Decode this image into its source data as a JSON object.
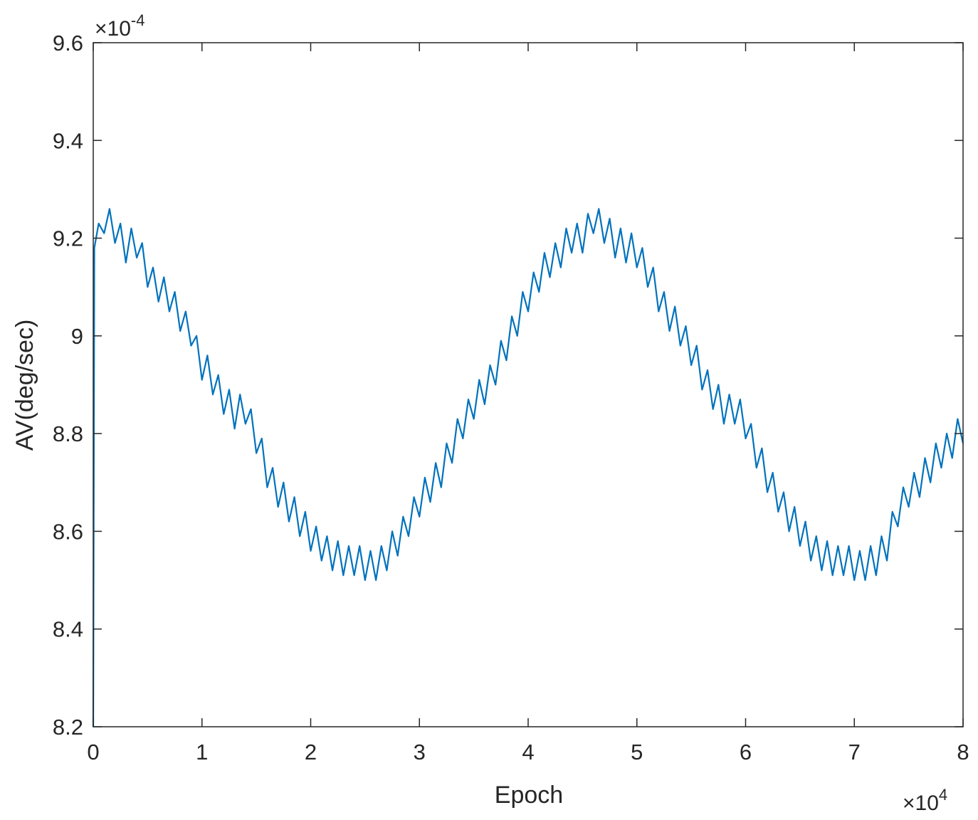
{
  "chart_data": {
    "type": "line",
    "xlabel": "Epoch",
    "ylabel": "AV(deg/sec)",
    "x_multiplier": {
      "base": "×10",
      "exponent": "4"
    },
    "y_multiplier": {
      "base": "×10",
      "exponent": "-4"
    },
    "xlim": [
      0,
      8
    ],
    "ylim": [
      8.2,
      9.6
    ],
    "xticks": [
      0,
      1,
      2,
      3,
      4,
      5,
      6,
      7,
      8
    ],
    "yticks": [
      8.2,
      8.4,
      8.6,
      8.8,
      9,
      9.2,
      9.4,
      9.6
    ],
    "grid": false,
    "box": true,
    "x": [
      0,
      0.01,
      0.05,
      0.1,
      0.15,
      0.2,
      0.25,
      0.3,
      0.35,
      0.4,
      0.45,
      0.5,
      0.55,
      0.6,
      0.65,
      0.7,
      0.75,
      0.8,
      0.85,
      0.9,
      0.95,
      1.0,
      1.05,
      1.1,
      1.15,
      1.2,
      1.25,
      1.3,
      1.35,
      1.4,
      1.45,
      1.5,
      1.55,
      1.6,
      1.65,
      1.7,
      1.75,
      1.8,
      1.85,
      1.9,
      1.95,
      2.0,
      2.05,
      2.1,
      2.15,
      2.2,
      2.25,
      2.3,
      2.35,
      2.4,
      2.45,
      2.5,
      2.55,
      2.6,
      2.65,
      2.7,
      2.75,
      2.8,
      2.85,
      2.9,
      2.95,
      3.0,
      3.05,
      3.1,
      3.15,
      3.2,
      3.25,
      3.3,
      3.35,
      3.4,
      3.45,
      3.5,
      3.55,
      3.6,
      3.65,
      3.7,
      3.75,
      3.8,
      3.85,
      3.9,
      3.95,
      4.0,
      4.05,
      4.1,
      4.15,
      4.2,
      4.25,
      4.3,
      4.35,
      4.4,
      4.45,
      4.5,
      4.55,
      4.6,
      4.65,
      4.7,
      4.75,
      4.8,
      4.85,
      4.9,
      4.95,
      5.0,
      5.05,
      5.1,
      5.15,
      5.2,
      5.25,
      5.3,
      5.35,
      5.4,
      5.45,
      5.5,
      5.55,
      5.6,
      5.65,
      5.7,
      5.75,
      5.8,
      5.85,
      5.9,
      5.95,
      6.0,
      6.05,
      6.1,
      6.15,
      6.2,
      6.25,
      6.3,
      6.35,
      6.4,
      6.45,
      6.5,
      6.55,
      6.6,
      6.65,
      6.7,
      6.75,
      6.8,
      6.85,
      6.9,
      6.95,
      7.0,
      7.05,
      7.1,
      7.15,
      7.2,
      7.25,
      7.3,
      7.35,
      7.4,
      7.45,
      7.5,
      7.55,
      7.6,
      7.65,
      7.7,
      7.75,
      7.8,
      7.85,
      7.9,
      7.95,
      8.0
    ],
    "series": [
      {
        "color": "#0072bd",
        "values": [
          8.2,
          9.18,
          9.23,
          9.21,
          9.26,
          9.19,
          9.23,
          9.15,
          9.22,
          9.16,
          9.19,
          9.1,
          9.14,
          9.07,
          9.12,
          9.05,
          9.09,
          9.01,
          9.05,
          8.98,
          9.0,
          8.91,
          8.96,
          8.88,
          8.92,
          8.84,
          8.89,
          8.81,
          8.88,
          8.82,
          8.85,
          8.76,
          8.79,
          8.69,
          8.73,
          8.65,
          8.7,
          8.62,
          8.67,
          8.59,
          8.64,
          8.56,
          8.61,
          8.54,
          8.59,
          8.52,
          8.58,
          8.51,
          8.57,
          8.51,
          8.57,
          8.5,
          8.56,
          8.5,
          8.57,
          8.52,
          8.6,
          8.55,
          8.63,
          8.59,
          8.67,
          8.63,
          8.71,
          8.66,
          8.74,
          8.69,
          8.78,
          8.74,
          8.83,
          8.79,
          8.87,
          8.83,
          8.91,
          8.86,
          8.94,
          8.9,
          8.99,
          8.95,
          9.04,
          9.0,
          9.09,
          9.05,
          9.13,
          9.09,
          9.17,
          9.12,
          9.19,
          9.14,
          9.22,
          9.17,
          9.23,
          9.17,
          9.25,
          9.21,
          9.26,
          9.19,
          9.24,
          9.16,
          9.22,
          9.15,
          9.21,
          9.14,
          9.18,
          9.1,
          9.14,
          9.05,
          9.09,
          9.01,
          9.06,
          8.98,
          9.02,
          8.94,
          8.98,
          8.89,
          8.93,
          8.85,
          8.9,
          8.82,
          8.88,
          8.82,
          8.87,
          8.79,
          8.82,
          8.73,
          8.77,
          8.68,
          8.72,
          8.64,
          8.68,
          8.6,
          8.65,
          8.57,
          8.62,
          8.54,
          8.59,
          8.52,
          8.58,
          8.51,
          8.57,
          8.51,
          8.57,
          8.5,
          8.56,
          8.5,
          8.57,
          8.51,
          8.59,
          8.54,
          8.64,
          8.61,
          8.69,
          8.65,
          8.72,
          8.67,
          8.75,
          8.7,
          8.78,
          8.73,
          8.8,
          8.75,
          8.83,
          8.78
        ]
      }
    ]
  }
}
